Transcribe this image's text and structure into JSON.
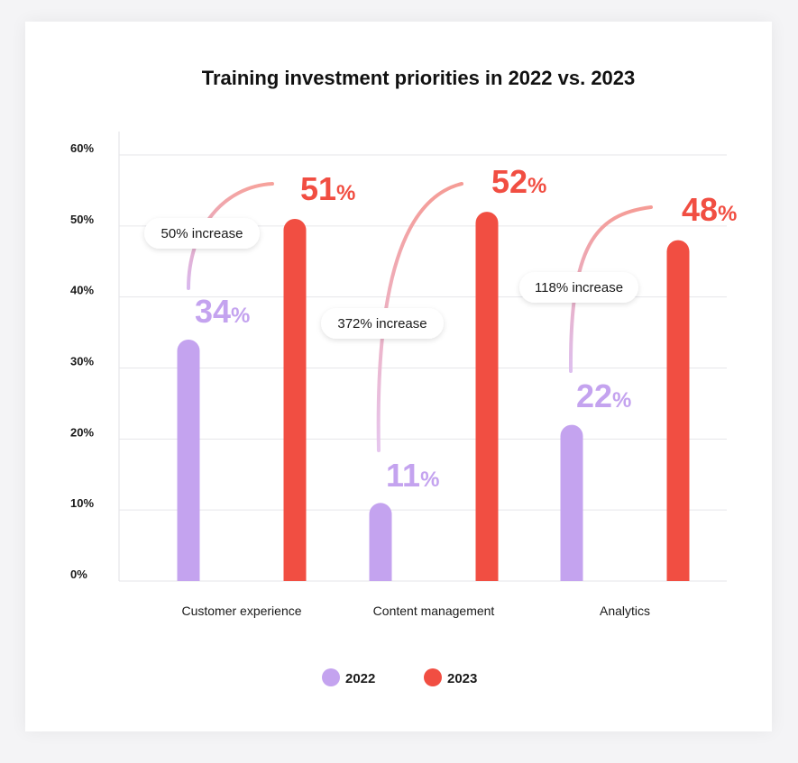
{
  "chart_data": {
    "type": "bar",
    "title": "Training investment priorities in 2022 vs. 2023",
    "xlabel": "",
    "ylabel": "",
    "ylim": [
      0,
      60
    ],
    "yticks": [
      "0%",
      "10%",
      "20%",
      "30%",
      "40%",
      "50%",
      "60%"
    ],
    "categories": [
      "Customer experience",
      "Content management",
      "Analytics"
    ],
    "series": [
      {
        "name": "2022",
        "color": "#c4a3ef",
        "values": [
          34,
          11,
          22
        ],
        "labels": [
          "34",
          "11",
          "22"
        ]
      },
      {
        "name": "2023",
        "color": "#f14e42",
        "values": [
          51,
          52,
          48
        ],
        "labels": [
          "51",
          "52",
          "48"
        ]
      }
    ],
    "percent_sign": "%",
    "annotations": [
      "50% increase",
      "372% increase",
      "118% increase"
    ],
    "grid": true,
    "legend_position": "bottom"
  }
}
